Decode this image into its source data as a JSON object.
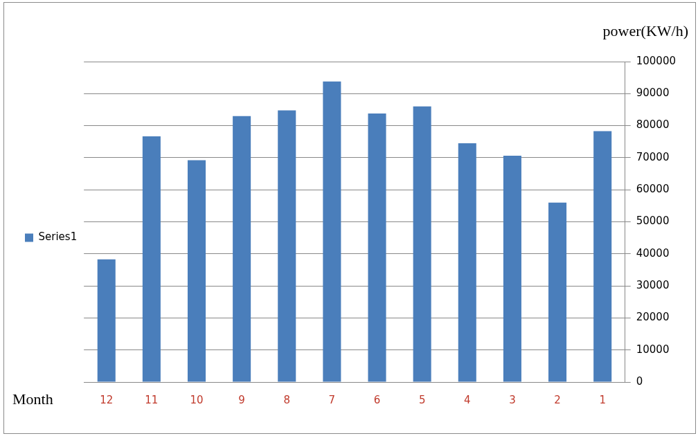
{
  "chart_data": {
    "type": "bar",
    "xlabel": "Month",
    "ylabel": "power(KW/h)",
    "categories": [
      "12",
      "11",
      "10",
      "9",
      "8",
      "7",
      "6",
      "5",
      "4",
      "3",
      "2",
      "1"
    ],
    "series": [
      {
        "name": "Series1",
        "color": "#4a7ebb",
        "values": [
          38300,
          76700,
          69200,
          83000,
          84800,
          93800,
          83800,
          86000,
          74500,
          70600,
          56000,
          78300
        ]
      }
    ],
    "ylim": [
      0,
      100000
    ],
    "yticks": [
      0,
      10000,
      20000,
      30000,
      40000,
      50000,
      60000,
      70000,
      80000,
      90000,
      100000
    ],
    "grid": "y",
    "legend": "left"
  }
}
